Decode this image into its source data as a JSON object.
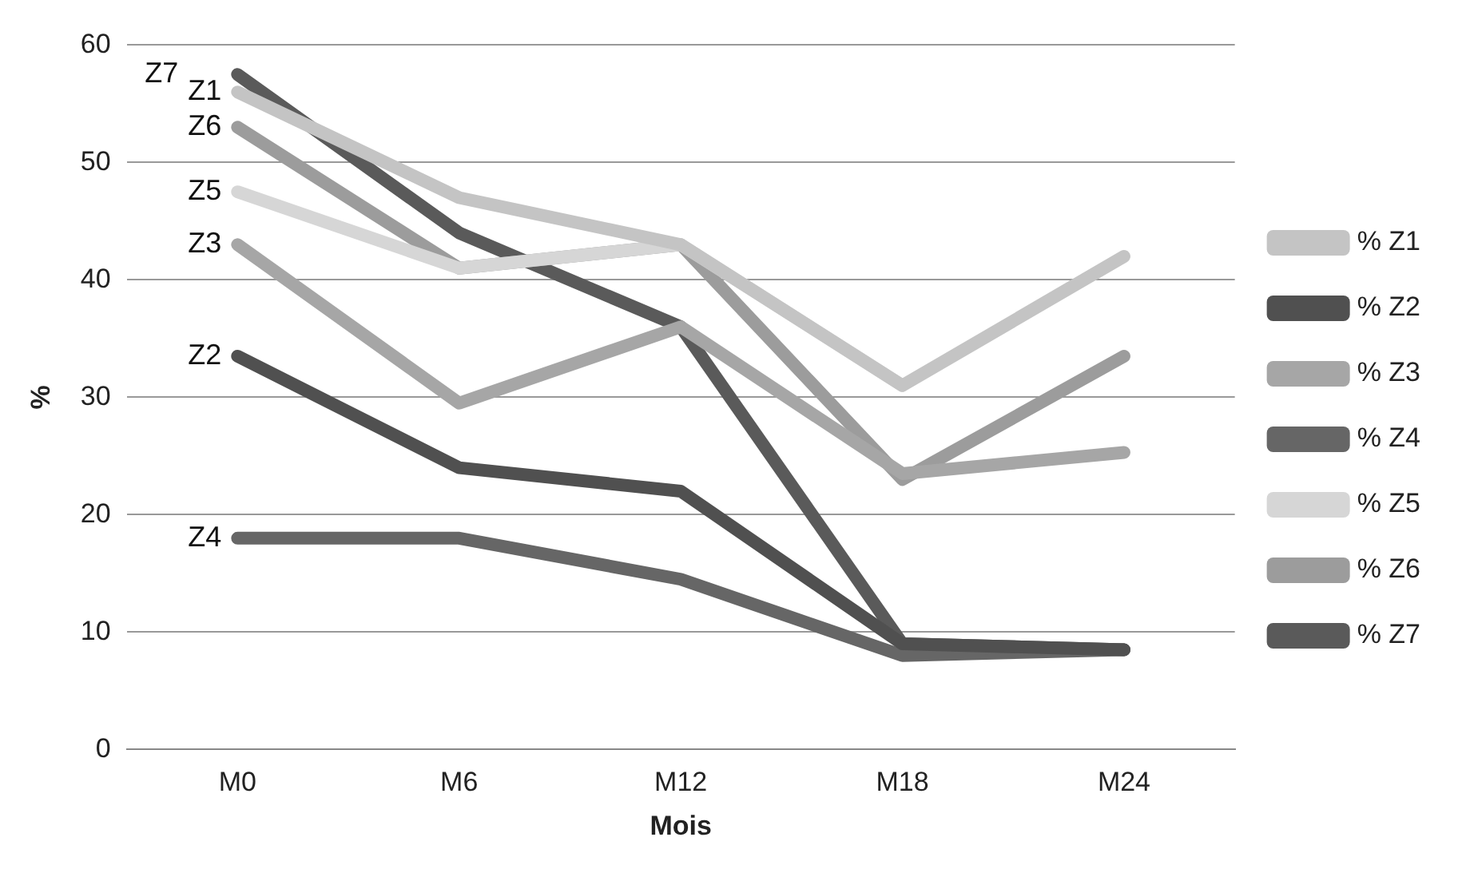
{
  "chart_data": {
    "type": "line",
    "xlabel": "Mois",
    "ylabel": "%",
    "categories": [
      "M0",
      "M6",
      "M12",
      "M18",
      "M24"
    ],
    "series": [
      {
        "name": "% Z1",
        "color": "#c4c4c4",
        "values": [
          56,
          47,
          43,
          31,
          42
        ]
      },
      {
        "name": "% Z2",
        "color": "#505050",
        "values": [
          33.5,
          24,
          22,
          9,
          8.5
        ]
      },
      {
        "name": "% Z3",
        "color": "#a6a6a6",
        "values": [
          43,
          29.5,
          36,
          23.5,
          25.3
        ]
      },
      {
        "name": "% Z4",
        "color": "#666666",
        "values": [
          18,
          18,
          14.5,
          8,
          8.5
        ]
      },
      {
        "name": "% Z5",
        "color": "#d6d6d6",
        "values": [
          47.5,
          41,
          43,
          31,
          null
        ]
      },
      {
        "name": "% Z6",
        "color": "#9c9c9c",
        "values": [
          53,
          41,
          43,
          23,
          33.5
        ]
      },
      {
        "name": "% Z7",
        "color": "#5a5a5a",
        "values": [
          57.5,
          44,
          36,
          9,
          8.5
        ]
      }
    ],
    "ylim": [
      0,
      60
    ],
    "yticks": [
      0,
      10,
      20,
      30,
      40,
      50,
      60
    ],
    "grid": "y",
    "legend": "right",
    "marker": "none",
    "line_style": "solid",
    "annotations": [
      {
        "text": "Z1",
        "x": "M0",
        "y": 56
      },
      {
        "text": "Z2",
        "x": "M0",
        "y": 33.5
      },
      {
        "text": "Z3",
        "x": "M0",
        "y": 43
      },
      {
        "text": "Z4",
        "x": "M0",
        "y": 18
      },
      {
        "text": "Z5",
        "x": "M0",
        "y": 47.5
      },
      {
        "text": "Z6",
        "x": "M0",
        "y": 53
      },
      {
        "text": "Z7",
        "x": "M0",
        "y": 57.5
      }
    ]
  }
}
